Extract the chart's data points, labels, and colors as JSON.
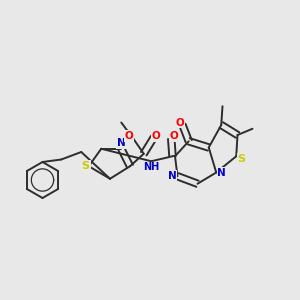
{
  "background_color": "#e8e8e8",
  "bond_color": "#2d2d2d",
  "bond_width": 1.4,
  "atom_colors": {
    "O": "#ff0000",
    "N": "#0000cc",
    "S": "#cccc00",
    "C": "#2d2d2d"
  },
  "font_size": 7.5,
  "fig_width": 3.0,
  "fig_height": 3.0,
  "dpi": 100,
  "xlim": [
    0,
    12
  ],
  "ylim": [
    0,
    12
  ]
}
